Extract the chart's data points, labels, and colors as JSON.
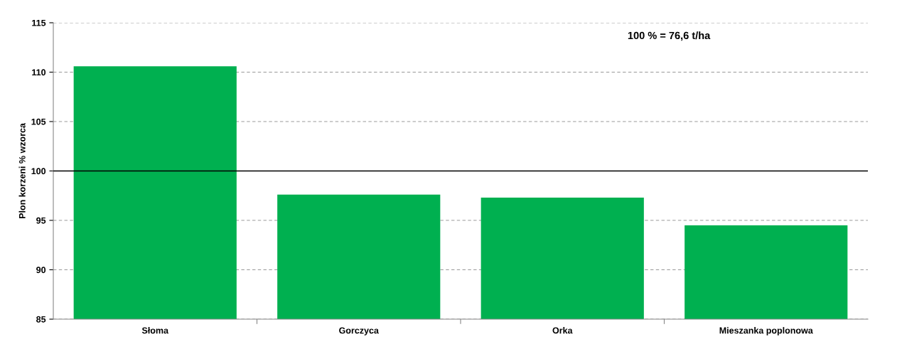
{
  "chart_data": {
    "type": "bar",
    "ylabel": "Plon korzeni % wzorca",
    "categories": [
      "Słoma",
      "Gorczyca",
      "Orka",
      "Mieszanka poplonowa"
    ],
    "values": [
      110.6,
      97.6,
      97.3,
      94.5
    ],
    "color": "#00b050",
    "ylim": [
      85,
      115
    ],
    "yticks": [
      85,
      90,
      95,
      100,
      105,
      110,
      115
    ],
    "grid": "y",
    "ref_lines": [
      {
        "axis": "y",
        "value": 100,
        "color": "#000000",
        "line_style": "solid"
      }
    ],
    "annotations": [
      "100 % = 76,6 t/ha"
    ]
  }
}
